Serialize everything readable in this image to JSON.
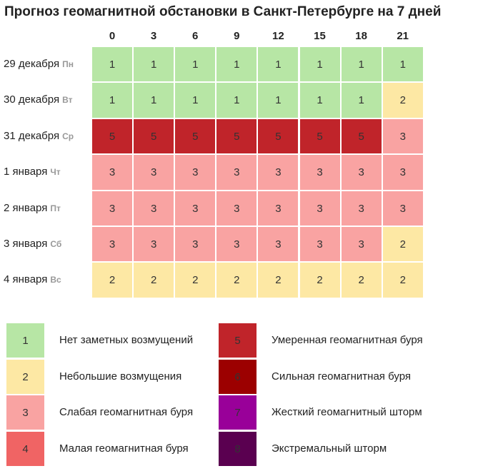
{
  "title": "Прогноз геомагнитной обстановки в Санкт-Петербурге на 7 дней",
  "table": {
    "columns": [
      "0",
      "3",
      "6",
      "9",
      "12",
      "15",
      "18",
      "21"
    ],
    "rows": [
      {
        "date": "29 декабря",
        "weekday": "Пн",
        "values": [
          1,
          1,
          1,
          1,
          1,
          1,
          1,
          1
        ]
      },
      {
        "date": "30 декабря",
        "weekday": "Вт",
        "values": [
          1,
          1,
          1,
          1,
          1,
          1,
          1,
          2
        ]
      },
      {
        "date": "31 декабря",
        "weekday": "Ср",
        "values": [
          5,
          5,
          5,
          5,
          5,
          5,
          5,
          3
        ]
      },
      {
        "date": "1 января",
        "weekday": "Чт",
        "values": [
          3,
          3,
          3,
          3,
          3,
          3,
          3,
          3
        ]
      },
      {
        "date": "2 января",
        "weekday": "Пт",
        "values": [
          3,
          3,
          3,
          3,
          3,
          3,
          3,
          3
        ]
      },
      {
        "date": "3 января",
        "weekday": "Сб",
        "values": [
          3,
          3,
          3,
          3,
          3,
          3,
          3,
          2
        ]
      },
      {
        "date": "4 января",
        "weekday": "Вс",
        "values": [
          2,
          2,
          2,
          2,
          2,
          2,
          2,
          2
        ]
      }
    ]
  },
  "legend": [
    {
      "level": 1,
      "label": "Нет заметных возмущений",
      "color": "#b7e6a5"
    },
    {
      "level": 2,
      "label": "Небольшие возмущения",
      "color": "#fde8a4"
    },
    {
      "level": 3,
      "label": "Слабая геомагнитная буря",
      "color": "#f9a3a2"
    },
    {
      "level": 4,
      "label": "Малая геомагнитная буря",
      "color": "#f06464"
    },
    {
      "level": 5,
      "label": "Умеренная геомагнитная буря",
      "color": "#c0242a"
    },
    {
      "level": 6,
      "label": "Сильная геомагнитная буря",
      "color": "#9c0000"
    },
    {
      "level": 7,
      "label": "Жесткий геомагнитный шторм",
      "color": "#990099"
    },
    {
      "level": 8,
      "label": "Экстремальный шторм",
      "color": "#5a0050"
    }
  ]
}
